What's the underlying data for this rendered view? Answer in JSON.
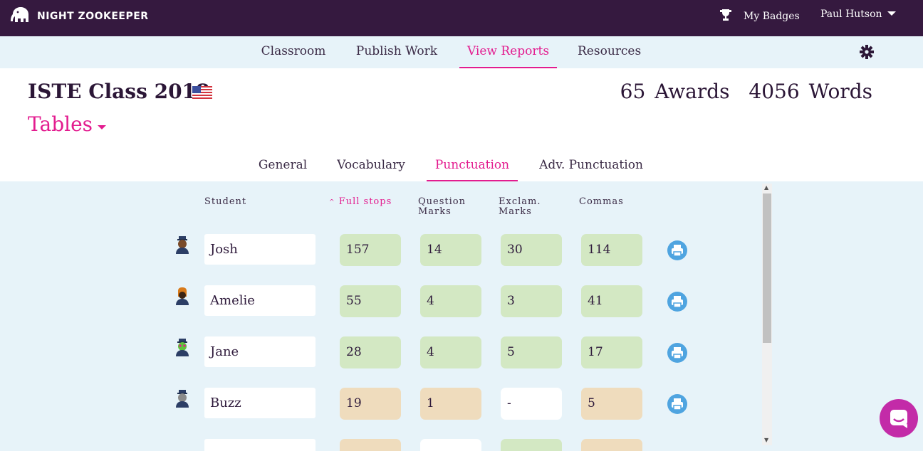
{
  "app": {
    "logo_text": "NIGHT ZOOKEEPER"
  },
  "header": {
    "badges_label": "My Badges",
    "user_name": "Paul Hutson"
  },
  "nav": {
    "items": [
      {
        "label": "Classroom"
      },
      {
        "label": "Publish Work"
      },
      {
        "label": "View Reports"
      },
      {
        "label": "Resources"
      }
    ],
    "active": "View Reports"
  },
  "class_info": {
    "title": "ISTE Class 2018",
    "awards": "65 Awards",
    "words": "4056 Words"
  },
  "view_selector": {
    "label": "Tables"
  },
  "subtabs": {
    "items": [
      {
        "label": "General"
      },
      {
        "label": "Vocabulary"
      },
      {
        "label": "Punctuation"
      },
      {
        "label": "Adv. Punctuation"
      }
    ],
    "active": "Punctuation"
  },
  "table": {
    "headers": {
      "student": "Student",
      "full_stops": "Full stops",
      "question_l1": "Question",
      "question_l2": "Marks",
      "exclam_l1": "Exclam.",
      "exclam_l2": "Marks",
      "commas": "Commas"
    },
    "sorted_by": "Full stops",
    "rows": [
      {
        "name": "Josh",
        "full_stops": "157",
        "question": "14",
        "exclam": "30",
        "commas": "114",
        "status": [
          "green",
          "green",
          "green",
          "green"
        ]
      },
      {
        "name": "Amelie",
        "full_stops": "55",
        "question": "4",
        "exclam": "3",
        "commas": "41",
        "status": [
          "green",
          "green",
          "green",
          "green"
        ]
      },
      {
        "name": "Jane",
        "full_stops": "28",
        "question": "4",
        "exclam": "5",
        "commas": "17",
        "status": [
          "green",
          "green",
          "green",
          "green"
        ]
      },
      {
        "name": "Buzz",
        "full_stops": "19",
        "question": "1",
        "exclam": "-",
        "commas": "5",
        "status": [
          "amber",
          "amber",
          "blank",
          "amber"
        ]
      }
    ]
  },
  "colors": {
    "brand": "#35193f",
    "accent": "#e31c8f",
    "good": "#d3e8c3",
    "warn": "#efdcbd",
    "print": "#4fa4e0"
  }
}
